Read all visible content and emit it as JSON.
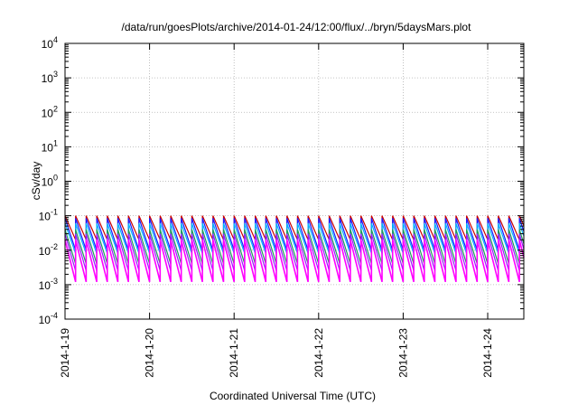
{
  "chart_data": {
    "type": "line",
    "title": "/data/run/goesPlots/archive/2014-01-24/12:00/flux/../bryn/5daysMars.plot",
    "xlabel": "Coordinated Universal Time (UTC)",
    "ylabel": "cSv/day",
    "x_scale": "time",
    "y_scale": "log",
    "xlim": [
      "2014-01-19T00:00",
      "2014-01-24T10:15"
    ],
    "ylim": [
      0.0001,
      10000
    ],
    "grid": true,
    "legend": "none",
    "x_ticks": [
      "2014-1-19",
      "2014-1-20",
      "2014-1-21",
      "2014-1-22",
      "2014-1-23",
      "2014-1-24"
    ],
    "y_ticks": [
      {
        "base": "10",
        "exp": "-4"
      },
      {
        "base": "10",
        "exp": "-3"
      },
      {
        "base": "10",
        "exp": "-2"
      },
      {
        "base": "10",
        "exp": "-1"
      },
      {
        "base": "10",
        "exp": "0"
      },
      {
        "base": "10",
        "exp": "1"
      },
      {
        "base": "10",
        "exp": "2"
      },
      {
        "base": "10",
        "exp": "3"
      },
      {
        "base": "10",
        "exp": "4"
      }
    ],
    "pattern": {
      "description_of_sawtooth": "periodic",
      "period_hours": 3,
      "series": [
        {
          "color": "#cc0000",
          "peak": 0.1,
          "trough": 0.02
        },
        {
          "color": "#1a1aff",
          "peak": 0.085,
          "trough": 0.01
        },
        {
          "color": "#00b4ff",
          "peak": 0.06,
          "trough": 0.008
        },
        {
          "color": "#1f9e5a",
          "peak": 0.04,
          "trough": 0.004
        },
        {
          "color": "#9a1aff",
          "peak": 0.03,
          "trough": 0.0025
        },
        {
          "color": "#ff00ff",
          "peak": 0.02,
          "trough": 0.0012
        }
      ]
    }
  }
}
